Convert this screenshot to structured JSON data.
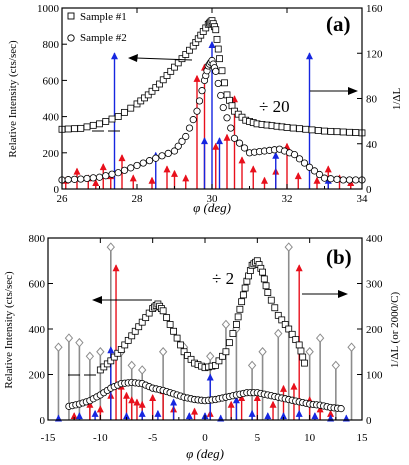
{
  "chart_data": [
    {
      "type": "scatter",
      "panel_label": "(a)",
      "xlabel": "φ (deg)",
      "ylabel": "Relative Intensity (cts/sec)",
      "y2label": "1/ΔL",
      "xlim": [
        26,
        34
      ],
      "ylim": [
        0,
        1000
      ],
      "y2lim": [
        0,
        160
      ],
      "xticks": [
        "26",
        "28",
        "30",
        "32",
        "34"
      ],
      "yticks": [
        "0",
        "200",
        "400",
        "600",
        "800",
        "1000"
      ],
      "y2ticks": [
        "0",
        "40",
        "80",
        "120",
        "160"
      ],
      "annotations": [
        "÷ 20"
      ],
      "legend": {
        "position": "top-left",
        "entries": [
          "Sample #1",
          "Sample #2"
        ]
      },
      "series": [
        {
          "name": "Sample #1",
          "marker": "square",
          "x": [
            26.0,
            26.5,
            27.0,
            27.5,
            28.0,
            28.3,
            28.6,
            28.9,
            29.2,
            29.5,
            29.7,
            29.9,
            30.0,
            30.1,
            30.2,
            30.4,
            30.6,
            30.9,
            31.2,
            31.6,
            32.0,
            32.5,
            33.0,
            33.5,
            34.0
          ],
          "y": [
            330,
            335,
            360,
            400,
            470,
            520,
            580,
            650,
            720,
            790,
            850,
            910,
            930,
            880,
            720,
            520,
            430,
            380,
            360,
            350,
            340,
            330,
            320,
            315,
            310
          ]
        },
        {
          "name": "Sample #2",
          "marker": "circle",
          "x": [
            26.0,
            26.5,
            27.0,
            27.5,
            28.0,
            28.5,
            29.0,
            29.3,
            29.6,
            29.8,
            29.9,
            30.0,
            30.1,
            30.3,
            30.6,
            31.0,
            31.4,
            31.8,
            32.2,
            32.6,
            33.0,
            33.5,
            34.0
          ],
          "y": [
            50,
            55,
            65,
            90,
            130,
            170,
            210,
            290,
            430,
            600,
            680,
            710,
            650,
            450,
            280,
            200,
            210,
            220,
            190,
            120,
            60,
            50,
            50
          ]
        }
      ],
      "stems": {
        "axis": "right",
        "red": {
          "x": [
            26.1,
            26.4,
            26.7,
            26.9,
            27.1,
            27.3,
            27.6,
            27.9,
            28.4,
            28.8,
            29.0,
            29.3,
            29.6,
            29.8,
            30.1,
            30.4,
            30.6,
            30.8,
            31.1,
            31.4,
            31.7,
            32.0,
            32.3,
            32.8,
            33.1,
            33.4,
            33.7
          ],
          "y": [
            10,
            18,
            12,
            8,
            22,
            14,
            30,
            12,
            10,
            20,
            16,
            12,
            100,
            110,
            40,
            48,
            82,
            28,
            20,
            10,
            18,
            40,
            14,
            10,
            20,
            12,
            8
          ]
        },
        "blue": {
          "x": [
            27.4,
            28.5,
            29.8,
            30.0,
            30.2,
            31.7,
            32.6,
            33.1
          ],
          "y": [
            120,
            32,
            45,
            130,
            45,
            32,
            120,
            10
          ]
        }
      }
    },
    {
      "type": "scatter",
      "panel_label": "(b)",
      "xlabel": "φ (deg)",
      "ylabel": "Relative Intensity (cts/sec)",
      "y2label": "1/ΔL   (or 2000/C)",
      "xlim": [
        -15,
        15
      ],
      "ylim": [
        0,
        800
      ],
      "y2lim": [
        0,
        400
      ],
      "xticks": [
        "-15",
        "-10",
        "-5",
        "0",
        "5",
        "10",
        "15"
      ],
      "yticks": [
        "0",
        "200",
        "400",
        "600",
        "800"
      ],
      "y2ticks": [
        "0",
        "100",
        "200",
        "300",
        "400"
      ],
      "annotations": [
        "÷ 2"
      ],
      "series": [
        {
          "name": "",
          "marker": "square",
          "x": [
            -10,
            -9,
            -8,
            -7,
            -6,
            -5,
            -4.5,
            -4,
            -3,
            -2,
            -1,
            0,
            1,
            2,
            3,
            3.5,
            4,
            4.5,
            5,
            5.5,
            6,
            7,
            8,
            9,
            9.5
          ],
          "y": [
            220,
            260,
            310,
            370,
            430,
            490,
            510,
            480,
            390,
            300,
            250,
            230,
            240,
            300,
            420,
            520,
            610,
            680,
            700,
            650,
            560,
            460,
            400,
            330,
            250
          ]
        },
        {
          "name": "",
          "marker": "circle",
          "x": [
            -13,
            -12,
            -11,
            -10,
            -9,
            -8,
            -7,
            -6,
            -5,
            -4,
            -3,
            -2,
            -1,
            0,
            1,
            2,
            3,
            4,
            5,
            6,
            7,
            8,
            9,
            10,
            11,
            12,
            13
          ],
          "y": [
            60,
            70,
            85,
            110,
            140,
            160,
            165,
            160,
            140,
            130,
            115,
            100,
            90,
            85,
            90,
            100,
            110,
            120,
            120,
            110,
            100,
            90,
            80,
            70,
            65,
            55,
            50
          ]
        }
      ],
      "stems": {
        "axis": "right",
        "gray": {
          "x": [
            -14,
            -13,
            -12,
            -11,
            -10,
            -9,
            -8,
            -7,
            -6,
            -4,
            -2,
            0.5,
            2,
            3,
            4.5,
            5.5,
            7,
            8,
            10,
            11,
            12.5,
            14
          ],
          "y": [
            160,
            180,
            170,
            140,
            150,
            380,
            150,
            120,
            110,
            150,
            160,
            140,
            210,
            200,
            120,
            150,
            190,
            380,
            150,
            180,
            120,
            160
          ]
        },
        "red": {
          "x": [
            -12.5,
            -11,
            -10,
            -9,
            -8.5,
            -8,
            -7.5,
            -7,
            -6.5,
            -6,
            -5,
            -4,
            -3,
            -1,
            0.5,
            2.5,
            3.5,
            5,
            6.5,
            7.5,
            8.5,
            9,
            10,
            11,
            12
          ],
          "y": [
            15,
            40,
            30,
            60,
            340,
            80,
            60,
            50,
            45,
            40,
            55,
            70,
            30,
            25,
            20,
            40,
            55,
            55,
            40,
            75,
            80,
            340,
            50,
            30,
            20
          ]
        },
        "blue": {
          "x": [
            -14,
            -12,
            -10.5,
            -9,
            -7.5,
            -6,
            -4.5,
            -3,
            -1.5,
            0,
            0.5,
            1.5,
            3,
            4.5,
            6,
            7.5,
            9,
            10.5,
            12,
            13.5
          ],
          "y": [
            10,
            15,
            20,
            160,
            15,
            20,
            20,
            45,
            15,
            15,
            100,
            10,
            50,
            20,
            15,
            15,
            20,
            15,
            10,
            10
          ]
        }
      }
    }
  ]
}
